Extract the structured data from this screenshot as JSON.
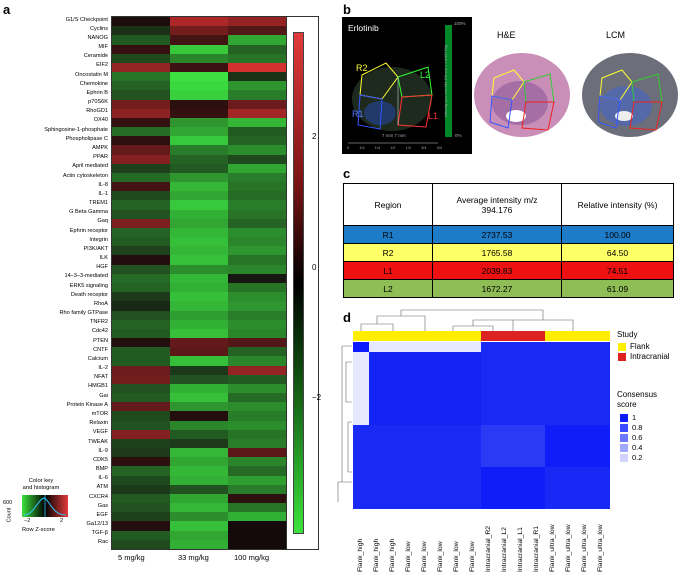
{
  "panel_a": {
    "letter": "a",
    "row_labels": [
      "G1/S Checkpoint",
      "Cyclins",
      "NANOG",
      "MIF",
      "Ceramide",
      "EIF2",
      "Oncostatin M",
      "Chemokine",
      "Ephrin B",
      "p70S6K",
      "RhoGD1",
      "OX40",
      "Sphingosine-1-phosphate",
      "Phospholipase C",
      "AMPK",
      "PPAR",
      "April mediated",
      "Actin cytoskeleton",
      "IL-8",
      "IL-1",
      "TREM1",
      "G Beta Gamma",
      "Gaq",
      "Ephrin receptor",
      "Integrin",
      "PI3K/AKT",
      "ILK",
      "HGF",
      "14–3–3-mediated",
      "ERK5 signaling",
      "Death receptor",
      "RhoA",
      "Rho family GTPase",
      "TNFR2",
      "Cdc42",
      "PTEN",
      "CNTF",
      "Calcium",
      "IL-2",
      "NFAT",
      "HMGB1",
      "Gai",
      "Protein Kinase A",
      "mTOR",
      "Relaxin",
      "VEGF",
      "TWEAK",
      "IL-9",
      "CDK5",
      "BMP",
      "IL-6",
      "ATM",
      "CXCR4",
      "Gas",
      "EGF",
      "Ga12/13",
      "TGF-β",
      "Rac"
    ],
    "col_labels": [
      "5 mg/kg",
      "33 mg/kg",
      "100 mg/kg"
    ],
    "colorbar_ticks": [
      "2",
      "0",
      "−2"
    ],
    "key": {
      "title": "Color key\nand histogram",
      "count_label": "Count",
      "count_tick": "600",
      "axis_ticks": [
        "−2",
        "2"
      ],
      "xlabel": "Row Z-score"
    },
    "z_values": [
      [
        0.1,
        1.9,
        1.6
      ],
      [
        -0.4,
        1.2,
        0.8
      ],
      [
        -0.9,
        0.6,
        -1.8
      ],
      [
        0.4,
        -2.2,
        -1.0
      ],
      [
        -0.7,
        -1.4,
        -1.2
      ],
      [
        1.6,
        0.5,
        2.4
      ],
      [
        -1.2,
        -2.5,
        -0.4
      ],
      [
        -1.0,
        -2.4,
        -1.6
      ],
      [
        -0.8,
        -2.3,
        -1.3
      ],
      [
        1.2,
        0.3,
        1.1
      ],
      [
        1.5,
        0.4,
        1.8
      ],
      [
        0.4,
        -1.6,
        -2.0
      ],
      [
        -1.1,
        -1.8,
        -0.9
      ],
      [
        0.3,
        -2.2,
        -1.0
      ],
      [
        1.0,
        -1.3,
        -1.5
      ],
      [
        1.4,
        -1.0,
        -0.7
      ],
      [
        -0.6,
        -0.9,
        -1.8
      ],
      [
        -1.1,
        -1.6,
        -1.3
      ],
      [
        0.6,
        -2.0,
        -1.2
      ],
      [
        -0.7,
        -1.8,
        -1.1
      ],
      [
        -1.0,
        -2.2,
        -1.3
      ],
      [
        -0.8,
        -1.9,
        -1.2
      ],
      [
        1.3,
        -1.8,
        -1.0
      ],
      [
        -1.0,
        -2.0,
        -1.5
      ],
      [
        -0.9,
        -2.1,
        -1.4
      ],
      [
        -0.6,
        -2.0,
        -1.6
      ],
      [
        0.2,
        -2.1,
        -1.2
      ],
      [
        -0.8,
        -1.5,
        -1.4
      ],
      [
        -1.1,
        -2.0,
        -0.1
      ],
      [
        -1.0,
        -1.9,
        -1.2
      ],
      [
        -0.5,
        -2.1,
        -1.5
      ],
      [
        -0.3,
        -2.0,
        -1.6
      ],
      [
        -0.8,
        -1.7,
        -1.3
      ],
      [
        -1.0,
        -1.9,
        -1.5
      ],
      [
        -0.9,
        -2.1,
        -1.4
      ],
      [
        0.2,
        1.0,
        0.8
      ],
      [
        -0.9,
        0.9,
        -1.0
      ],
      [
        -0.9,
        -2.1,
        -1.4
      ],
      [
        1.1,
        -0.5,
        1.6
      ],
      [
        1.2,
        -0.8,
        -0.9
      ],
      [
        -0.8,
        -1.9,
        -1.5
      ],
      [
        -0.9,
        -2.1,
        -1.1
      ],
      [
        1.0,
        -1.6,
        -1.5
      ],
      [
        -0.7,
        0.2,
        -1.3
      ],
      [
        -0.8,
        -1.4,
        -1.5
      ],
      [
        1.4,
        -0.9,
        -1.2
      ],
      [
        -0.6,
        -0.5,
        -1.3
      ],
      [
        -0.5,
        -2.0,
        0.9
      ],
      [
        0.3,
        -1.8,
        -1.4
      ],
      [
        -1.0,
        -2.0,
        -1.1
      ],
      [
        -0.7,
        -1.9,
        -1.7
      ],
      [
        -0.5,
        -0.8,
        -1.3
      ],
      [
        -0.9,
        -1.8,
        0.3
      ],
      [
        -0.8,
        -2.0,
        -1.2
      ],
      [
        -0.6,
        -1.5,
        -1.9
      ],
      [
        0.2,
        -2.1,
        0.0
      ],
      [
        -0.9,
        -1.8,
        0.0
      ],
      [
        -0.7,
        -1.9,
        0.0
      ]
    ]
  },
  "panel_b": {
    "letter": "b",
    "images": [
      {
        "title": "Erlotinib",
        "regions": [
          "R2",
          "L2",
          "R1",
          "L1"
        ],
        "scale_ticks": [
          "0",
          "1/4",
          "1/4",
          "1/2",
          "1/2",
          "3/4",
          "3/4"
        ],
        "scale_label": "7 mm   7 mm",
        "intensity_label": "Intensity (a.u. m/z 394.176 m/z = ± 0.007 Da)",
        "bar_top": "100%",
        "bar_bottom": "0%"
      },
      {
        "title": "H&E"
      },
      {
        "title": "LCM"
      }
    ]
  },
  "panel_c": {
    "letter": "c",
    "headers": [
      "Region",
      "Average intensity m/z\n394.176",
      "Relative intensity (%)"
    ],
    "rows": [
      {
        "region": "R1",
        "avg": "2737.53",
        "rel": "100.00",
        "color": "#1e7bc8"
      },
      {
        "region": "R2",
        "avg": "1765.58",
        "rel": "64.50",
        "color": "#ffff66"
      },
      {
        "region": "L1",
        "avg": "2039.83",
        "rel": "74.51",
        "color": "#ee1111"
      },
      {
        "region": "L2",
        "avg": "1672.27",
        "rel": "61.09",
        "color": "#8fbd56"
      }
    ]
  },
  "panel_d": {
    "letter": "d",
    "x_labels": [
      "Flank_high",
      "Flank_high",
      "Flank_high",
      "Flank_low",
      "Flank_low",
      "Flank_low",
      "Flank_low",
      "Flank_low",
      "Intracranial_R2",
      "Intracranial_L2",
      "Intracranial_L1",
      "Intracranial_R1",
      "Flank_ultra_low",
      "Flank_ultra_low",
      "Flank_ultra_low",
      "Flank_ultra_low"
    ],
    "study_colors": {
      "Flank": "#ffee00",
      "Intracranial": "#dd2222"
    },
    "study_sequence": [
      "Flank",
      "Flank",
      "Flank",
      "Flank",
      "Flank",
      "Flank",
      "Flank",
      "Flank",
      "Intracranial",
      "Intracranial",
      "Intracranial",
      "Intracranial",
      "Flank",
      "Flank",
      "Flank",
      "Flank"
    ],
    "legend_study_title": "Study",
    "legend_study_items": [
      "Flank",
      "Intracranial"
    ],
    "legend_score_title": "Consensus\nscore",
    "legend_score_ticks": [
      "1",
      "0.8",
      "0.6",
      "0.4",
      "0.2"
    ]
  }
}
